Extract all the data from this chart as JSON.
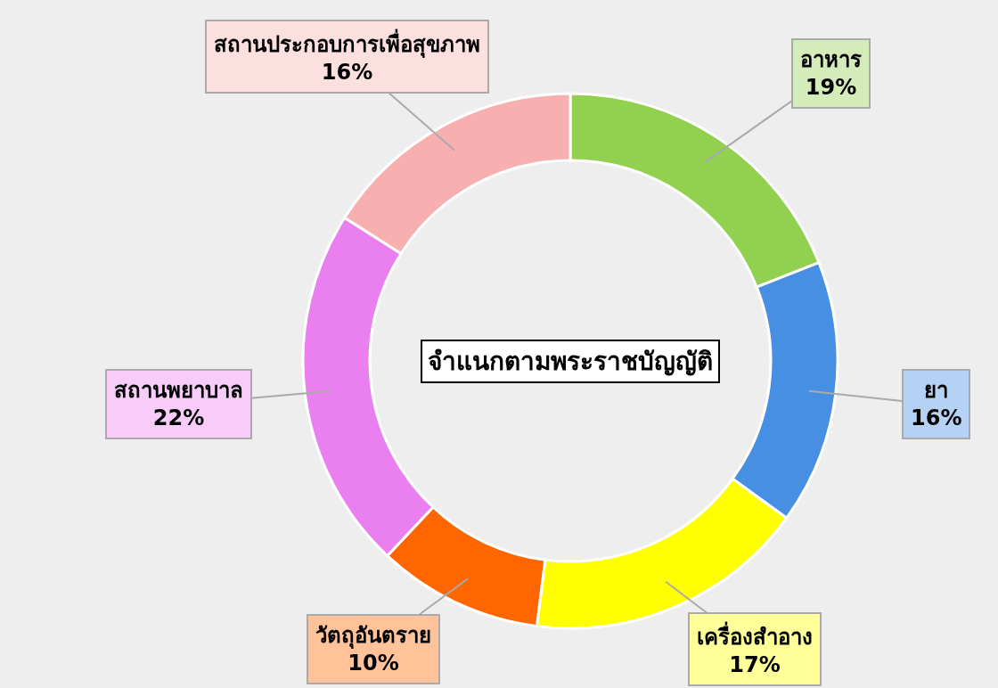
{
  "chart_data": {
    "type": "donut",
    "title": "จำแนกตามพระราชบัญญัติ",
    "categories": [
      "อาหาร",
      "ยา",
      "เครื่องสำอาง",
      "วัตถุอันตราย",
      "สถานพยาบาล",
      "สถานประกอบการเพื่อสุขภาพ"
    ],
    "values": [
      19,
      16,
      17,
      10,
      22,
      16
    ],
    "value_labels": [
      "19%",
      "16%",
      "17%",
      "10%",
      "22%",
      "16%"
    ],
    "colors": [
      "#92d050",
      "#478fe3",
      "#ffff00",
      "#ff6600",
      "#ea80ef",
      "#f7afaf"
    ],
    "legend": false
  }
}
